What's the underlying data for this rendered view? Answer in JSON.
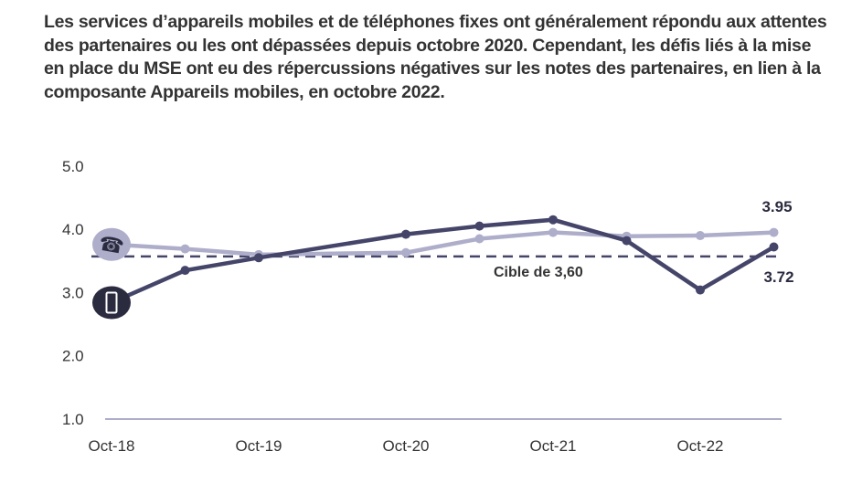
{
  "chart_data": {
    "type": "line",
    "title": "Les services d’appareils mobiles et de téléphones fixes ont généralement répondu aux attentes des partenaires ou les ont dépassées depuis octobre 2020. Cependant, les défis liés à la mise en place du MSE ont eu des répercussions négatives sur les notes des partenaires, en lien à la composante Appareils mobiles, en octobre 2022.",
    "xlabel": "",
    "ylabel": "",
    "ylim": [
      1.0,
      5.0
    ],
    "yticks": [
      "1.0",
      "2.0",
      "3.0",
      "4.0",
      "5.0"
    ],
    "xtick_labels": [
      "Oct-18",
      "Oct-19",
      "Oct-20",
      "Oct-21",
      "Oct-22"
    ],
    "xtick_months": [
      0,
      12,
      24,
      36,
      48
    ],
    "x_months": [
      0,
      6,
      12,
      24,
      30,
      36,
      42,
      48,
      54
    ],
    "series": [
      {
        "name": "Téléphones fixes",
        "icon": "phone-icon",
        "color": "#aeaecb",
        "values": [
          3.76,
          3.69,
          3.6,
          3.63,
          3.85,
          3.95,
          3.89,
          3.9,
          3.95
        ]
      },
      {
        "name": "Appareils mobiles",
        "icon": "mobile-phone-icon",
        "color": "#45456a",
        "values": [
          2.84,
          3.35,
          3.55,
          3.92,
          4.05,
          4.15,
          3.82,
          3.04,
          3.72
        ]
      }
    ],
    "target": {
      "value": 3.6,
      "label": "Cible de 3,60"
    },
    "end_labels": [
      "3.95",
      "3.72"
    ],
    "grid": false,
    "legend": "icons at series start"
  }
}
